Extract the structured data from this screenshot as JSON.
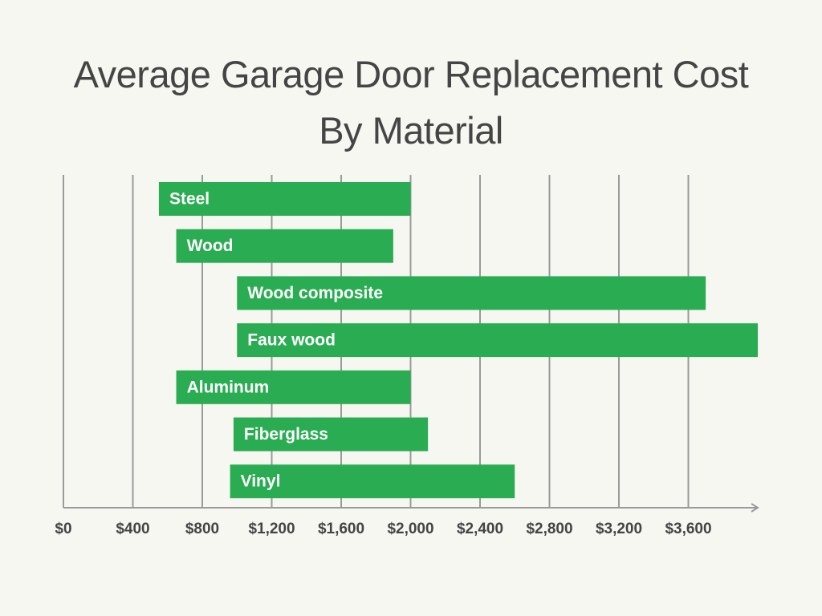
{
  "chart_data": {
    "type": "range-bar",
    "title": "Average Garage Door Replacement Cost By Material",
    "categories": [
      "Steel",
      "Wood",
      "Wood composite",
      "Faux wood",
      "Aluminum",
      "Fiberglass",
      "Vinyl"
    ],
    "values": [
      [
        550,
        2000
      ],
      [
        650,
        1900
      ],
      [
        1000,
        3700
      ],
      [
        1000,
        4000
      ],
      [
        650,
        2000
      ],
      [
        980,
        2100
      ],
      [
        960,
        2600
      ]
    ],
    "color": "#2aad52",
    "xlim": [
      0,
      4000
    ],
    "xticks": [
      {
        "value": 0,
        "label": "$0"
      },
      {
        "value": 400,
        "label": "$400"
      },
      {
        "value": 800,
        "label": "$800"
      },
      {
        "value": 1200,
        "label": "$1,200"
      },
      {
        "value": 1600,
        "label": "$1,600"
      },
      {
        "value": 2000,
        "label": "$2,000"
      },
      {
        "value": 2400,
        "label": "$2,400"
      },
      {
        "value": 2800,
        "label": "$2,800"
      },
      {
        "value": 3200,
        "label": "$3,200"
      },
      {
        "value": 3600,
        "label": "$3,600"
      }
    ],
    "grid": true
  }
}
